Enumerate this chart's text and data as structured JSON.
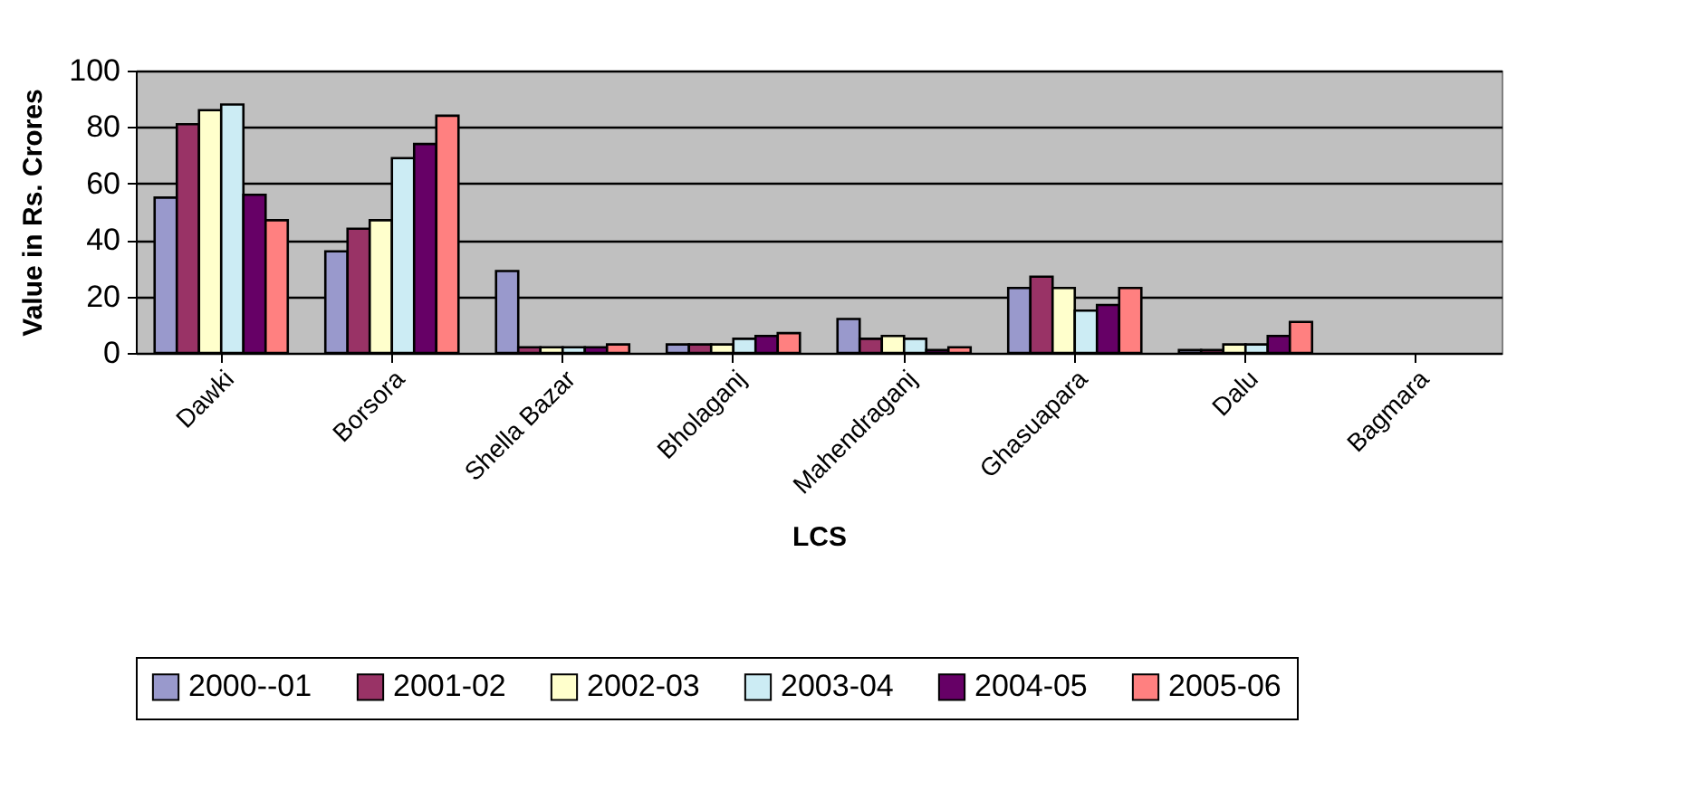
{
  "chart_data": {
    "type": "bar",
    "xlabel": "LCS",
    "ylabel": "Value in Rs. Crores",
    "categories": [
      "Dawki",
      "Borsora",
      "Shella Bazar",
      "Bholaganj",
      "Mahendraganj",
      "Ghasuapara",
      "Dalu",
      "Bagmara"
    ],
    "series": [
      {
        "name": "2000--01",
        "color": "#9999cc",
        "values": [
          55,
          36,
          29,
          3,
          12,
          23,
          1,
          null
        ]
      },
      {
        "name": "2001-02",
        "color": "#993366",
        "values": [
          81,
          44,
          2,
          3,
          5,
          27,
          1,
          null
        ]
      },
      {
        "name": "2002-03",
        "color": "#ffffcc",
        "values": [
          86,
          47,
          2,
          3,
          6,
          23,
          3,
          null
        ]
      },
      {
        "name": "2003-04",
        "color": "#ccecf4",
        "values": [
          88,
          69,
          2,
          5,
          5,
          15,
          3,
          null
        ]
      },
      {
        "name": "2004-05",
        "color": "#660066",
        "values": [
          56,
          74,
          2,
          6,
          1,
          17,
          6,
          null
        ]
      },
      {
        "name": "2005-06",
        "color": "#ff8080",
        "values": [
          47,
          84,
          3,
          7,
          2,
          23,
          11,
          null
        ]
      }
    ],
    "ylim": [
      0,
      100
    ],
    "yticks": [
      0,
      20,
      40,
      60,
      80,
      100
    ],
    "grid": "y",
    "legend": "bottom"
  }
}
